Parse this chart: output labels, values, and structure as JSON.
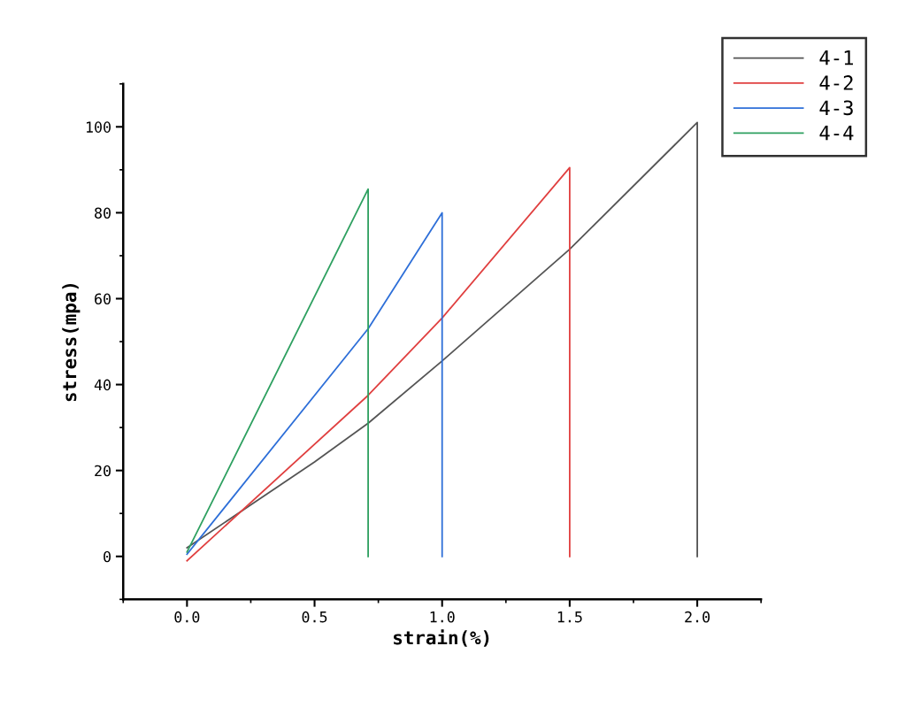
{
  "chart_data": {
    "type": "line",
    "xlabel": "strain(%)",
    "ylabel": "stress(mpa)",
    "xlim": [
      -0.25,
      2.25
    ],
    "xticks": [
      {
        "value": 0,
        "label": "0.0"
      },
      0.5,
      {
        "value": 1,
        "label": "1.0"
      },
      1.5,
      {
        "value": 2,
        "label": "2.0"
      }
    ],
    "ylim": [
      -10,
      110
    ],
    "yticks": [
      0,
      20,
      40,
      60,
      80,
      100
    ],
    "grid": false,
    "legend": "top right",
    "marker": "none",
    "line_style": "solid",
    "series": [
      {
        "name": "4-1",
        "color": "#555555",
        "x": [
          0,
          0.25,
          0.5,
          0.71,
          1.0,
          1.5,
          2.0,
          2.0
        ],
        "values": [
          2,
          12,
          22,
          31,
          45.5,
          71.5,
          101,
          0
        ]
      },
      {
        "name": "4-2",
        "color": "#e04040",
        "x": [
          0,
          0.71,
          1.0,
          1.5,
          1.5
        ],
        "values": [
          -1,
          37.5,
          55.5,
          90.5,
          0
        ]
      },
      {
        "name": "4-3",
        "color": "#2e6fd8",
        "x": [
          0,
          0.71,
          1.0,
          1.0
        ],
        "values": [
          0.5,
          53,
          80,
          0
        ]
      },
      {
        "name": "4-4",
        "color": "#2ea060",
        "x": [
          0,
          0.71,
          0.71
        ],
        "values": [
          1,
          85.5,
          0
        ]
      }
    ]
  }
}
